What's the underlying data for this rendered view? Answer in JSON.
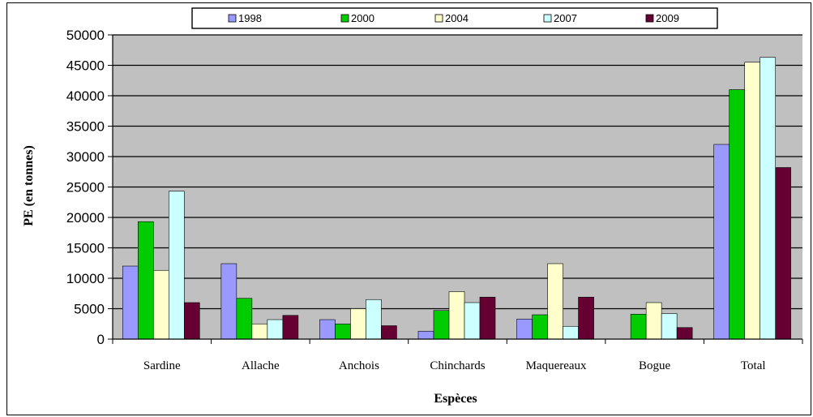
{
  "chart_data": {
    "type": "bar",
    "title": "",
    "xlabel": "Espèces",
    "ylabel": "PE (en tonnes)",
    "ylim": [
      0,
      50000
    ],
    "yticks": [
      0,
      5000,
      10000,
      15000,
      20000,
      25000,
      30000,
      35000,
      40000,
      45000,
      50000
    ],
    "grid": true,
    "legend_position": "top",
    "categories": [
      "Sardine",
      "Allache",
      "Anchois",
      "Chinchards",
      "Maquereaux",
      "Bogue",
      "Total"
    ],
    "series": [
      {
        "name": "1998",
        "color": "#9999ff",
        "values": [
          12000,
          12400,
          3200,
          1300,
          3300,
          0,
          32000
        ]
      },
      {
        "name": "2000",
        "color": "#00cc00",
        "values": [
          19300,
          6700,
          2500,
          4700,
          4000,
          4100,
          41000
        ]
      },
      {
        "name": "2004",
        "color": "#ffffcc",
        "values": [
          11300,
          2500,
          5000,
          7800,
          12400,
          6000,
          45500
        ]
      },
      {
        "name": "2007",
        "color": "#ccffff",
        "values": [
          24300,
          3200,
          6500,
          6000,
          2100,
          4200,
          46300
        ]
      },
      {
        "name": "2009",
        "color": "#660033",
        "values": [
          6000,
          3900,
          2200,
          6900,
          6900,
          1900,
          28200
        ]
      }
    ],
    "plot_background": "#c0c0c0"
  }
}
